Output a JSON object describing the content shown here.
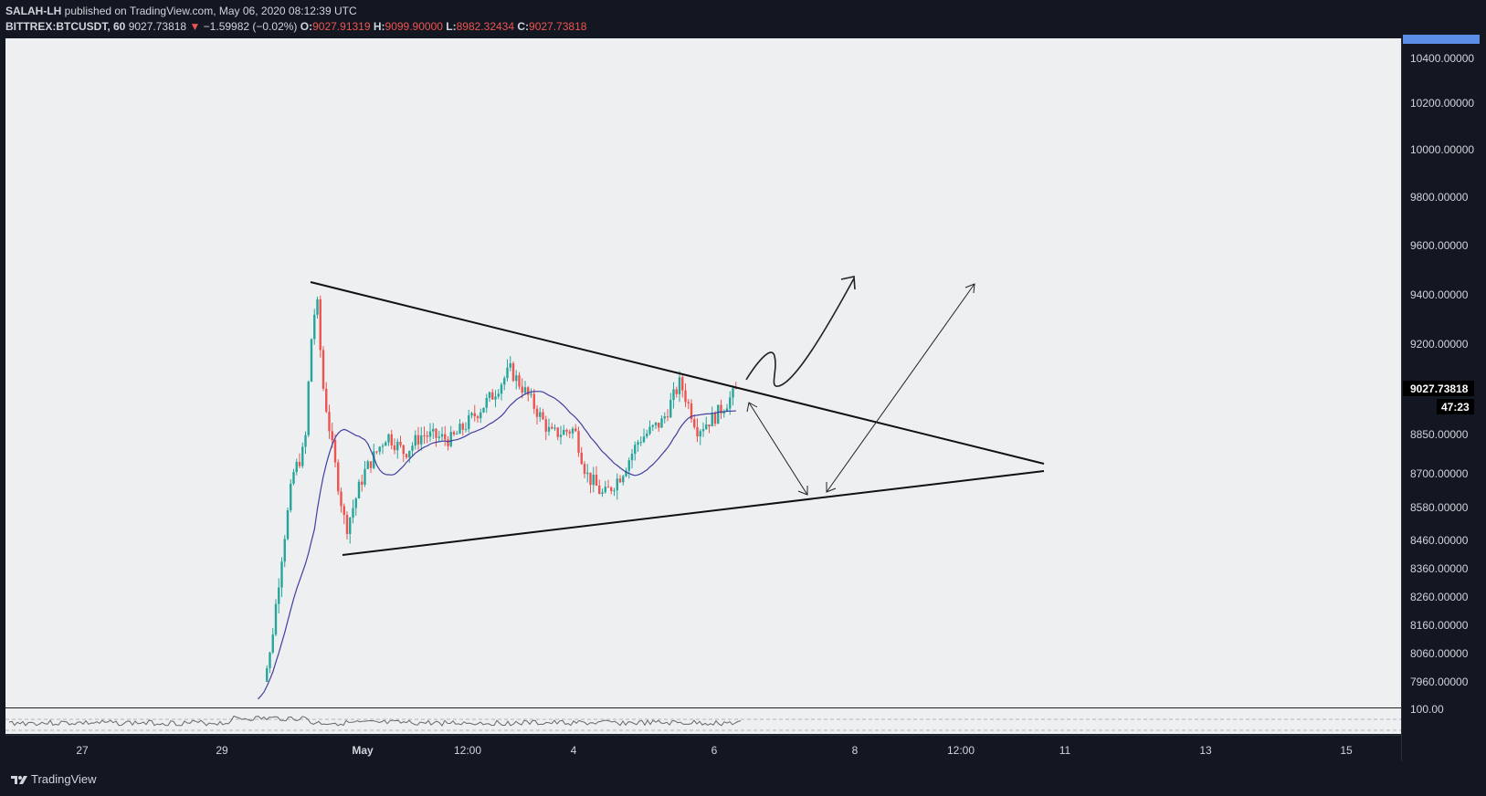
{
  "header": {
    "author": "SALAH-LH",
    "published": " published on TradingView.com, May 06, 2020 08:12:39 UTC",
    "symbol": "BITTREX:BTCUSDT, 60",
    "last": "9027.73818",
    "change_arrow": "▼",
    "change": "−1.59982 (−0.02%)",
    "o_label": "O:",
    "o_value": "9027.91319",
    "h_label": "H:",
    "h_value": "9099.90000",
    "l_label": "L:",
    "l_value": "8982.32434",
    "c_label": "C:",
    "c_value": "9027.73818"
  },
  "footer": {
    "brand": "TradingView",
    "logo_icon": "tradingview-logo-icon"
  },
  "colors": {
    "background": "#131722",
    "pane": "#eeeff1",
    "up": "#26a69a",
    "down": "#ef5350",
    "ma": "#3f3f9f",
    "axis_text": "#d1d4dc",
    "current_price_bg": "#000000"
  },
  "chart_data": {
    "type": "candlestick",
    "symbol": "BITTREX:BTCUSDT",
    "interval": "60",
    "y_ticks": [
      7960,
      8060,
      8160,
      8260,
      8360,
      8460,
      8580,
      8700,
      8850,
      9000,
      9200,
      9400,
      9600,
      9800,
      10000,
      10200,
      10400
    ],
    "y_tick_labels": [
      "7960.00000",
      "8060.00000",
      "8160.00000",
      "8260.00000",
      "8360.00000",
      "8460.00000",
      "8580.00000",
      "8700.00000",
      "8850.00000",
      "",
      "9200.00000",
      "9400.00000",
      "9600.00000",
      "9800.00000",
      "10000.00000",
      "10200.00000",
      "10400.00000"
    ],
    "x_ticks": [
      "27",
      "29",
      "May",
      "12:00",
      "4",
      "6",
      "8",
      "12:00",
      "11",
      "13",
      "15"
    ],
    "current_price": "9027.73818",
    "countdown": "47:23",
    "oscillator_label": "100.00",
    "price_points": [
      {
        "t": "Apr 29 12:00",
        "price": 7900
      },
      {
        "t": "Apr 29 16:00",
        "price": 8050
      },
      {
        "t": "Apr 29 20:00",
        "price": 8400
      },
      {
        "t": "Apr 30 00:00",
        "price": 8700
      },
      {
        "t": "Apr 30 04:00",
        "price": 8800
      },
      {
        "t": "Apr 30 06:00",
        "price": 9200
      },
      {
        "t": "Apr 30 08:00",
        "price": 9400
      },
      {
        "t": "Apr 30 10:00",
        "price": 9050
      },
      {
        "t": "Apr 30 14:00",
        "price": 8750
      },
      {
        "t": "Apr 30 18:00",
        "price": 8500
      },
      {
        "t": "May 1 00:00",
        "price": 8700
      },
      {
        "t": "May 1 08:00",
        "price": 8850
      },
      {
        "t": "May 1 14:00",
        "price": 8780
      },
      {
        "t": "May 1 20:00",
        "price": 8850
      },
      {
        "t": "May 2 06:00",
        "price": 8830
      },
      {
        "t": "May 2 12:00",
        "price": 8900
      },
      {
        "t": "May 2 20:00",
        "price": 9000
      },
      {
        "t": "May 3 02:00",
        "price": 9100
      },
      {
        "t": "May 3 08:00",
        "price": 9000
      },
      {
        "t": "May 3 16:00",
        "price": 8850
      },
      {
        "t": "May 4 00:00",
        "price": 8870
      },
      {
        "t": "May 4 04:00",
        "price": 8700
      },
      {
        "t": "May 4 10:00",
        "price": 8620
      },
      {
        "t": "May 4 16:00",
        "price": 8700
      },
      {
        "t": "May 4 22:00",
        "price": 8830
      },
      {
        "t": "May 5 06:00",
        "price": 8900
      },
      {
        "t": "May 5 12:00",
        "price": 9050
      },
      {
        "t": "May 5 18:00",
        "price": 8870
      },
      {
        "t": "May 6 00:00",
        "price": 8920
      },
      {
        "t": "May 6 06:00",
        "price": 9000
      },
      {
        "t": "May 6 08:00",
        "price": 9028
      }
    ]
  }
}
